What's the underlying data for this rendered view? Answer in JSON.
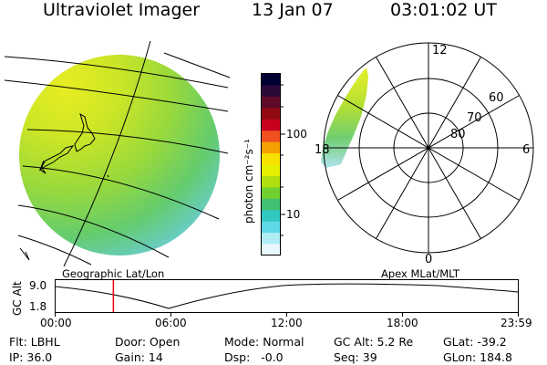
{
  "header": {
    "instrument": "Ultraviolet Imager",
    "date": "13 Jan 07",
    "time": "03:01:02 UT"
  },
  "left_panel": {
    "caption": "Geographic Lat/Lon"
  },
  "right_panel": {
    "caption": "Apex MLat/MLT",
    "mlt_labels": [
      "12",
      "18",
      "6",
      "0"
    ],
    "mlat_labels": [
      "60",
      "70",
      "80"
    ]
  },
  "colorbar": {
    "unit": "photon cm⁻²s⁻¹",
    "tick_labels": [
      "100",
      "10"
    ],
    "colors": [
      "#000033",
      "#2b0a3a",
      "#600a2a",
      "#900a10",
      "#c8001e",
      "#f0501e",
      "#f5a000",
      "#f8e000",
      "#e4f000",
      "#b0e010",
      "#70d030",
      "#40c070",
      "#30c8c0",
      "#60d8e8",
      "#b0ecf4",
      "#e8f8fc"
    ]
  },
  "timeline": {
    "ylabel": "GC Alt",
    "y_ticks": [
      "9.0",
      "1.8"
    ],
    "x_ticks": [
      "00:00",
      "06:00",
      "12:00",
      "18:00",
      "23:59"
    ],
    "cursor_hours": 3.017
  },
  "status": {
    "filter": "Flt: LBHL",
    "door": "Door: Open",
    "mode": "Mode: Normal",
    "gc_alt": "GC Alt: 5.2 Re",
    "glat": "GLat: -39.2",
    "ip": "IP: 36.0",
    "gain": "Gain: 14",
    "dsp": "Dsp:   -0.0",
    "seq": "Seq: 39",
    "glon": "GLon: 184.8"
  },
  "colors": {
    "cursor": "#e8000c",
    "foreground": "#000000"
  }
}
